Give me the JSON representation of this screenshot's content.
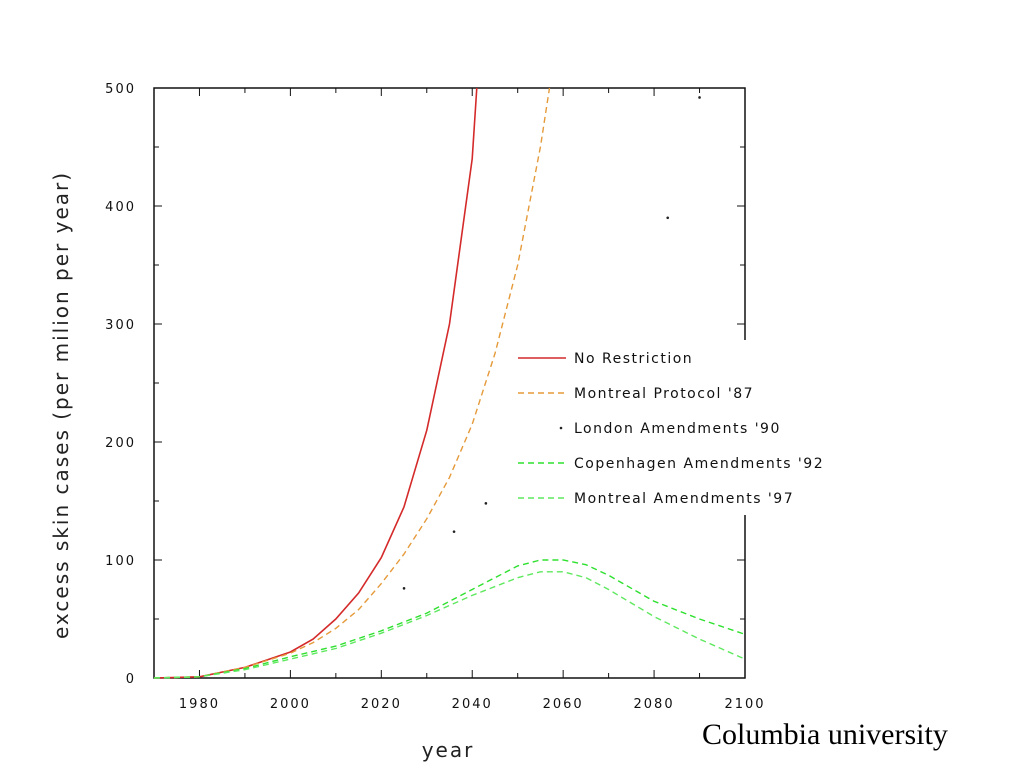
{
  "colors": {
    "no_restriction": "#d42a2a",
    "montreal_protocol": "#e59a3a",
    "london": "#222222",
    "copenhagen": "#2ee02e",
    "montreal_amendments": "#5fe85f"
  },
  "credit": "Columbia university",
  "chart_data": {
    "type": "line",
    "title": "",
    "xlabel": "year",
    "ylabel": "excess skin cases (per milion per year)",
    "xlim": [
      1970,
      2100
    ],
    "ylim": [
      0,
      500
    ],
    "x_ticks": [
      1980,
      2000,
      2020,
      2040,
      2060,
      2080,
      2100
    ],
    "y_ticks": [
      0,
      100,
      200,
      300,
      400,
      500
    ],
    "grid": false,
    "legend_position": "right",
    "series": [
      {
        "name": "No Restriction",
        "style": "solid",
        "x": [
          1970,
          1980,
          1990,
          2000,
          2005,
          2010,
          2015,
          2020,
          2025,
          2030,
          2035,
          2040,
          2041
        ],
        "y": [
          0,
          1,
          9,
          22,
          33,
          50,
          72,
          102,
          145,
          210,
          300,
          440,
          500
        ]
      },
      {
        "name": "Montreal Protocol '87",
        "style": "dashed",
        "x": [
          1970,
          1980,
          1990,
          2000,
          2005,
          2010,
          2015,
          2020,
          2025,
          2030,
          2035,
          2040,
          2045,
          2050,
          2055,
          2057
        ],
        "y": [
          0,
          1,
          9,
          21,
          30,
          42,
          58,
          80,
          105,
          135,
          170,
          215,
          275,
          350,
          450,
          500
        ]
      },
      {
        "name": "London Amendments '90",
        "style": "dotted",
        "x": [
          2025,
          2036,
          2043,
          2083,
          2090
        ],
        "y": [
          76,
          124,
          148,
          390,
          492
        ]
      },
      {
        "name": "Copenhagen Amendments '92",
        "style": "dashed",
        "x": [
          1970,
          1980,
          1990,
          2000,
          2010,
          2020,
          2030,
          2040,
          2050,
          2055,
          2060,
          2065,
          2070,
          2080,
          2090,
          2100
        ],
        "y": [
          0,
          1,
          8,
          18,
          27,
          40,
          55,
          75,
          95,
          100,
          100,
          96,
          87,
          65,
          50,
          37
        ]
      },
      {
        "name": "Montreal Amendments '97",
        "style": "dashed",
        "x": [
          1970,
          1980,
          1990,
          2000,
          2010,
          2020,
          2030,
          2040,
          2050,
          2055,
          2060,
          2065,
          2070,
          2080,
          2090,
          2100
        ],
        "y": [
          0,
          1,
          7,
          16,
          25,
          38,
          53,
          70,
          85,
          90,
          90,
          85,
          75,
          52,
          33,
          16
        ]
      }
    ]
  }
}
